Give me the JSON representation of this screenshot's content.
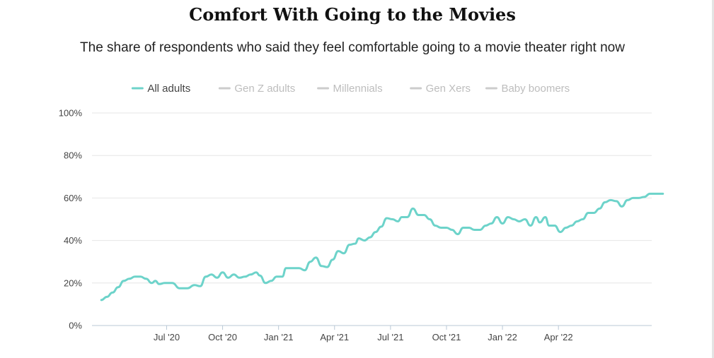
{
  "title": "Comfort With Going to the Movies",
  "subtitle": "The share of respondents who said they feel comfortable going to a movie theater right now",
  "chart_data": {
    "type": "line",
    "title": "Comfort With Going to the Movies",
    "subtitle": "The share of respondents who said they feel comfortable going to a movie theater right now",
    "xlabel": "",
    "ylabel": "",
    "ylim": [
      0,
      100
    ],
    "grid": true,
    "legend_position": "top-center",
    "y_ticks": [
      0,
      20,
      40,
      60,
      80,
      100
    ],
    "y_tick_labels": [
      "0%",
      "20%",
      "40%",
      "60%",
      "80%",
      "100%"
    ],
    "x_ticks": [
      4.5,
      7.5,
      10.5,
      13.5,
      16.5,
      19.5,
      22.5,
      25.5,
      28.5
    ],
    "x_tick_labels": [
      "Jul '20",
      "Oct '20",
      "Jan '21",
      "Apr '21",
      "Jul '21",
      "Oct '21",
      "Jan '22",
      "Apr '22"
    ],
    "x_tick_months": [
      4.5,
      7.5,
      10.5,
      13.5,
      16.5,
      19.5,
      22.5,
      25.5
    ],
    "x_range": [
      0.5,
      30.5
    ],
    "legend": [
      {
        "name": "All adults",
        "color": "#6dd3ca",
        "active": true
      },
      {
        "name": "Gen Z adults",
        "color": "#cfcfcf",
        "active": false
      },
      {
        "name": "Millennials",
        "color": "#cfcfcf",
        "active": false
      },
      {
        "name": "Gen Xers",
        "color": "#cfcfcf",
        "active": false
      },
      {
        "name": "Baby boomers",
        "color": "#cfcfcf",
        "active": false
      }
    ],
    "series": [
      {
        "name": "All adults",
        "color": "#6dd3ca",
        "points": [
          [
            1.0,
            12
          ],
          [
            1.3,
            13.5
          ],
          [
            1.6,
            15.5
          ],
          [
            1.9,
            18
          ],
          [
            2.2,
            21
          ],
          [
            2.5,
            22
          ],
          [
            2.8,
            23
          ],
          [
            3.1,
            23
          ],
          [
            3.4,
            22
          ],
          [
            3.7,
            20
          ],
          [
            3.9,
            21
          ],
          [
            4.1,
            19.5
          ],
          [
            4.4,
            20
          ],
          [
            4.8,
            20
          ],
          [
            5.2,
            17.5
          ],
          [
            5.6,
            17.5
          ],
          [
            6.0,
            19
          ],
          [
            6.3,
            18.5
          ],
          [
            6.6,
            23
          ],
          [
            6.9,
            24
          ],
          [
            7.2,
            22.5
          ],
          [
            7.5,
            25
          ],
          [
            7.8,
            22.5
          ],
          [
            8.1,
            24
          ],
          [
            8.4,
            22.5
          ],
          [
            8.7,
            23
          ],
          [
            9.0,
            24
          ],
          [
            9.3,
            25
          ],
          [
            9.5,
            23.5
          ],
          [
            9.8,
            20
          ],
          [
            10.1,
            21
          ],
          [
            10.4,
            23
          ],
          [
            10.7,
            23
          ],
          [
            10.9,
            27
          ],
          [
            11.3,
            27
          ],
          [
            11.6,
            27
          ],
          [
            11.9,
            26
          ],
          [
            12.2,
            30
          ],
          [
            12.5,
            32
          ],
          [
            12.8,
            28
          ],
          [
            13.1,
            27.5
          ],
          [
            13.4,
            31
          ],
          [
            13.7,
            35
          ],
          [
            14.0,
            34
          ],
          [
            14.3,
            38
          ],
          [
            14.6,
            38.5
          ],
          [
            14.8,
            41
          ],
          [
            15.1,
            40
          ],
          [
            15.4,
            41.5
          ],
          [
            15.7,
            44
          ],
          [
            16.0,
            46.5
          ],
          [
            16.3,
            50.5
          ],
          [
            16.6,
            50
          ],
          [
            16.9,
            49
          ],
          [
            17.1,
            51
          ],
          [
            17.4,
            51
          ],
          [
            17.7,
            55
          ],
          [
            18.0,
            52
          ],
          [
            18.3,
            52
          ],
          [
            18.6,
            50
          ],
          [
            18.9,
            47
          ],
          [
            19.2,
            46
          ],
          [
            19.5,
            46
          ],
          [
            19.8,
            45
          ],
          [
            20.1,
            43
          ],
          [
            20.4,
            46
          ],
          [
            20.7,
            46
          ],
          [
            21.0,
            45
          ],
          [
            21.3,
            45
          ],
          [
            21.6,
            47
          ],
          [
            21.9,
            48
          ],
          [
            22.2,
            51
          ],
          [
            22.5,
            48
          ],
          [
            22.8,
            51
          ],
          [
            23.1,
            50
          ],
          [
            23.4,
            49
          ],
          [
            23.7,
            50
          ],
          [
            24.0,
            47
          ],
          [
            24.3,
            51
          ],
          [
            24.5,
            48.5
          ],
          [
            24.8,
            51
          ],
          [
            25.0,
            47
          ],
          [
            25.3,
            47
          ],
          [
            25.6,
            44
          ],
          [
            25.9,
            46
          ],
          [
            26.2,
            47
          ],
          [
            26.5,
            49
          ],
          [
            26.8,
            50
          ],
          [
            27.1,
            53
          ],
          [
            27.4,
            53
          ],
          [
            27.7,
            55
          ],
          [
            28.0,
            58
          ],
          [
            28.3,
            59
          ],
          [
            28.6,
            58.5
          ],
          [
            28.9,
            56
          ],
          [
            29.2,
            59
          ],
          [
            29.5,
            60
          ],
          [
            29.8,
            60
          ],
          [
            30.1,
            60.5
          ],
          [
            30.4,
            62
          ],
          [
            30.8,
            62
          ],
          [
            31.1,
            62
          ]
        ]
      }
    ]
  }
}
